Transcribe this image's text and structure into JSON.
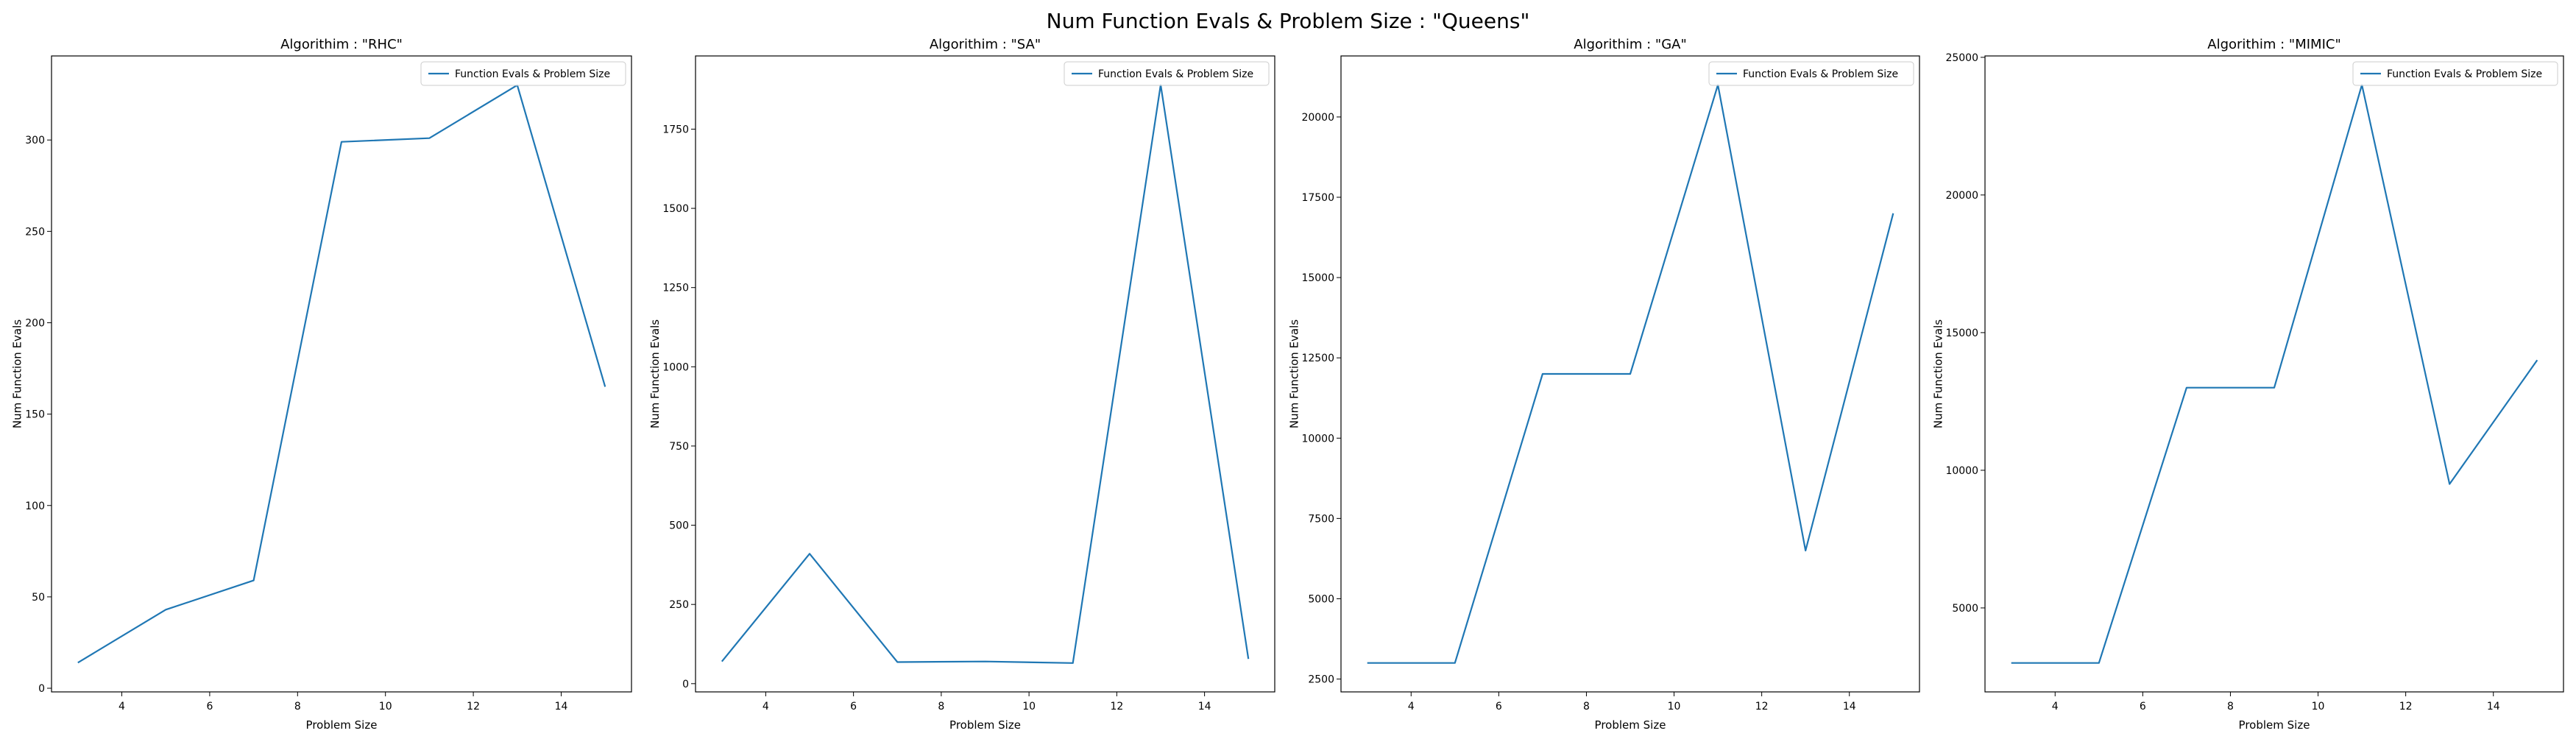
{
  "figure": {
    "suptitle": "Num Function Evals & Problem Size : \"Queens\"",
    "line_color": "#1f77b4"
  },
  "chart_data": [
    {
      "type": "line",
      "title": "Algorithim : \"RHC\"",
      "xlabel": "Problem Size",
      "ylabel": "Num Function Evals",
      "x": [
        3,
        5,
        7,
        9,
        11,
        13,
        15
      ],
      "series": [
        {
          "name": "Function Evals & Problem Size",
          "values": [
            14,
            43,
            59,
            299,
            301,
            330,
            165
          ]
        }
      ],
      "xlim": [
        2.4,
        15.6
      ],
      "ylim": [
        -2,
        346
      ],
      "xticks": [
        4,
        6,
        8,
        10,
        12,
        14
      ],
      "xtick_labels": [
        "4",
        "6",
        "8",
        "10",
        "12",
        "14"
      ],
      "yticks": [
        0,
        50,
        100,
        150,
        200,
        250,
        300
      ],
      "ytick_labels": [
        "0",
        "50",
        "100",
        "150",
        "200",
        "250",
        "300"
      ],
      "legend": "top-right",
      "grid": false
    },
    {
      "type": "line",
      "title": "Algorithim : \"SA\"",
      "xlabel": "Problem Size",
      "ylabel": "Num Function Evals",
      "x": [
        3,
        5,
        7,
        9,
        11,
        13,
        15
      ],
      "series": [
        {
          "name": "Function Evals & Problem Size",
          "values": [
            70,
            410,
            68,
            70,
            65,
            1890,
            78
          ]
        }
      ],
      "xlim": [
        2.4,
        15.6
      ],
      "ylim": [
        -26,
        1981
      ],
      "xticks": [
        4,
        6,
        8,
        10,
        12,
        14
      ],
      "xtick_labels": [
        "4",
        "6",
        "8",
        "10",
        "12",
        "14"
      ],
      "yticks": [
        0,
        250,
        500,
        750,
        1000,
        1250,
        1500,
        1750
      ],
      "ytick_labels": [
        "0",
        "250",
        "500",
        "750",
        "1000",
        "1250",
        "1500",
        "1750"
      ],
      "legend": "top-right",
      "grid": false
    },
    {
      "type": "line",
      "title": "Algorithim : \"GA\"",
      "xlabel": "Problem Size",
      "ylabel": "Num Function Evals",
      "x": [
        3,
        5,
        7,
        9,
        11,
        13,
        15
      ],
      "series": [
        {
          "name": "Function Evals & Problem Size",
          "values": [
            3000,
            3000,
            12000,
            12000,
            21000,
            6500,
            17000
          ]
        }
      ],
      "xlim": [
        2.4,
        15.6
      ],
      "ylim": [
        2100,
        21900
      ],
      "xticks": [
        4,
        6,
        8,
        10,
        12,
        14
      ],
      "xtick_labels": [
        "4",
        "6",
        "8",
        "10",
        "12",
        "14"
      ],
      "yticks": [
        2500,
        5000,
        7500,
        10000,
        12500,
        15000,
        17500,
        20000
      ],
      "ytick_labels": [
        "2500",
        "5000",
        "7500",
        "10000",
        "12500",
        "15000",
        "17500",
        "20000"
      ],
      "legend": "top-right",
      "grid": false
    },
    {
      "type": "line",
      "title": "Algorithim : \"MIMIC\"",
      "xlabel": "Problem Size",
      "ylabel": "Num Function Evals",
      "x": [
        3,
        5,
        7,
        9,
        11,
        13,
        15
      ],
      "series": [
        {
          "name": "Function Evals & Problem Size",
          "values": [
            3000,
            3000,
            13000,
            13000,
            24000,
            9500,
            14000
          ]
        }
      ],
      "xlim": [
        2.4,
        15.6
      ],
      "ylim": [
        1950,
        25050
      ],
      "xticks": [
        4,
        6,
        8,
        10,
        12,
        14
      ],
      "xtick_labels": [
        "4",
        "6",
        "8",
        "10",
        "12",
        "14"
      ],
      "yticks": [
        5000,
        10000,
        15000,
        20000,
        25000
      ],
      "ytick_labels": [
        "5000",
        "10000",
        "15000",
        "20000",
        "25000"
      ],
      "legend": "top-right",
      "grid": false
    }
  ]
}
